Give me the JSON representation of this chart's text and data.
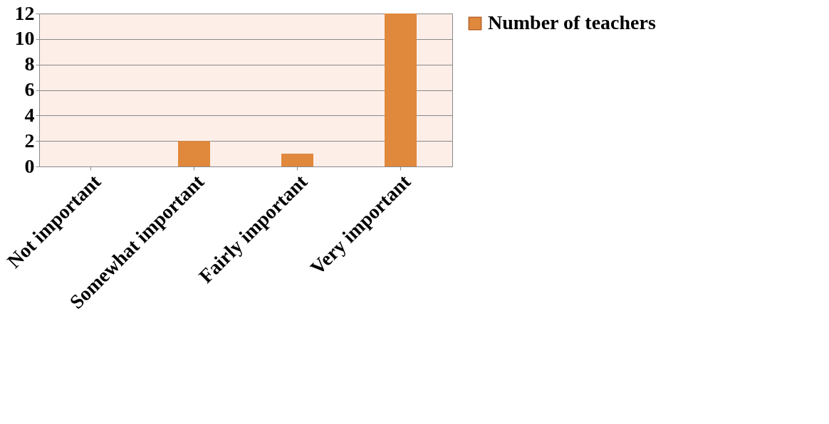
{
  "chart_data": {
    "type": "bar",
    "categories": [
      "Not important",
      "Somewhat important",
      "Fairly important",
      "Very important"
    ],
    "series": [
      {
        "name": "Number of teachers",
        "color": "#e0883c",
        "values": [
          0,
          2,
          1,
          12
        ]
      }
    ],
    "ylim": [
      0,
      12
    ],
    "yticks": [
      0,
      2,
      4,
      6,
      8,
      10,
      12
    ],
    "grid": "y",
    "legend": "right"
  }
}
